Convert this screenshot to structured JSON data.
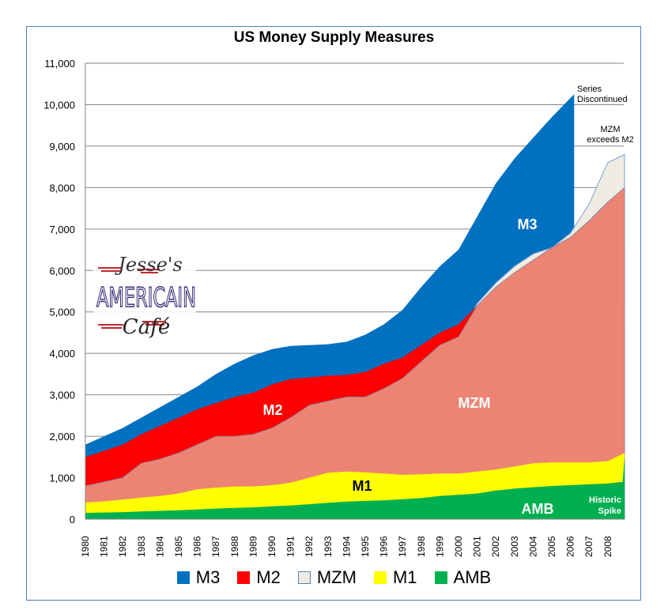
{
  "chart_data": {
    "type": "area",
    "title": "US Money Supply Measures",
    "xlabel": "",
    "ylabel": "",
    "ylim": [
      0,
      11000
    ],
    "yticks": [
      "0",
      "1,000",
      "2,000",
      "3,000",
      "4,000",
      "5,000",
      "6,000",
      "7,000",
      "8,000",
      "9,000",
      "10,000",
      "11,000"
    ],
    "ytick_values": [
      0,
      1000,
      2000,
      3000,
      4000,
      5000,
      6000,
      7000,
      8000,
      9000,
      10000,
      11000
    ],
    "xticks": [
      "1980",
      "1981",
      "1982",
      "1983",
      "1984",
      "1985",
      "1986",
      "1987",
      "1988",
      "1989",
      "1990",
      "1991",
      "1992",
      "1993",
      "1994",
      "1995",
      "1996",
      "1997",
      "1998",
      "1999",
      "2000",
      "2001",
      "2002",
      "2003",
      "2004",
      "2005",
      "2006",
      "2007",
      "2008"
    ],
    "grid": true,
    "legend_position": "bottom",
    "series": [
      {
        "name": "M3",
        "color": "#0070c0",
        "x": [
          1980,
          1981,
          1982,
          1983,
          1984,
          1985,
          1986,
          1987,
          1988,
          1989,
          1990,
          1991,
          1992,
          1993,
          1994,
          1995,
          1996,
          1997,
          1998,
          1999,
          2000,
          2001,
          2002,
          2003,
          2004,
          2005,
          2006.2
        ],
        "values": [
          1800,
          2000,
          2200,
          2450,
          2700,
          2950,
          3200,
          3500,
          3750,
          3950,
          4100,
          4180,
          4200,
          4220,
          4280,
          4450,
          4700,
          5050,
          5600,
          6100,
          6500,
          7300,
          8100,
          8700,
          9200,
          9700,
          10250
        ]
      },
      {
        "name": "M2",
        "color": "#ff0000",
        "x": [
          1980,
          1981,
          1982,
          1983,
          1984,
          1985,
          1986,
          1987,
          1988,
          1989,
          1990,
          1991,
          1992,
          1993,
          1994,
          1995,
          1996,
          1997,
          1998,
          1999,
          2000,
          2001,
          2002,
          2003,
          2004,
          2005,
          2006,
          2007,
          2008,
          2008.9
        ],
        "values": [
          1500,
          1650,
          1800,
          2050,
          2250,
          2450,
          2650,
          2800,
          2950,
          3050,
          3250,
          3380,
          3420,
          3460,
          3480,
          3550,
          3750,
          3900,
          4200,
          4500,
          4700,
          5150,
          5600,
          5950,
          6250,
          6550,
          6800,
          7200,
          7650,
          8000
        ]
      },
      {
        "name": "MZM",
        "color": "#eeece1",
        "x": [
          1980,
          1981,
          1982,
          1983,
          1984,
          1985,
          1986,
          1987,
          1988,
          1989,
          1990,
          1991,
          1992,
          1993,
          1994,
          1995,
          1996,
          1997,
          1998,
          1999,
          2000,
          2001,
          2002,
          2003,
          2004,
          2005,
          2006,
          2007,
          2008,
          2008.9
        ],
        "values": [
          800,
          900,
          1000,
          1350,
          1450,
          1600,
          1800,
          2000,
          2000,
          2050,
          2200,
          2450,
          2750,
          2850,
          2950,
          2950,
          3150,
          3400,
          3800,
          4200,
          4400,
          5200,
          5700,
          6100,
          6400,
          6550,
          6900,
          7600,
          8600,
          8800
        ]
      },
      {
        "name": "M1",
        "color": "#ffff00",
        "x": [
          1980,
          1981,
          1982,
          1983,
          1984,
          1985,
          1986,
          1987,
          1988,
          1989,
          1990,
          1991,
          1992,
          1993,
          1994,
          1995,
          1996,
          1997,
          1998,
          1999,
          2000,
          2001,
          2002,
          2003,
          2004,
          2005,
          2006,
          2007,
          2008,
          2008.9
        ],
        "values": [
          400,
          430,
          470,
          520,
          560,
          620,
          720,
          760,
          790,
          790,
          820,
          880,
          1000,
          1120,
          1150,
          1130,
          1100,
          1070,
          1080,
          1100,
          1100,
          1150,
          1200,
          1270,
          1350,
          1370,
          1370,
          1370,
          1400,
          1600
        ]
      },
      {
        "name": "AMB",
        "color": "#00b050",
        "x": [
          1980,
          1981,
          1982,
          1983,
          1984,
          1985,
          1986,
          1987,
          1988,
          1989,
          1990,
          1991,
          1992,
          1993,
          1994,
          1995,
          1996,
          1997,
          1998,
          1999,
          2000,
          2001,
          2002,
          2003,
          2004,
          2005,
          2006,
          2007,
          2008,
          2008.8,
          2008.9
        ],
        "values": [
          150,
          160,
          170,
          185,
          200,
          215,
          235,
          255,
          270,
          285,
          310,
          330,
          360,
          395,
          425,
          440,
          455,
          480,
          510,
          560,
          590,
          620,
          690,
          740,
          770,
          800,
          820,
          840,
          860,
          900,
          1500
        ]
      }
    ],
    "overlap_color": "#ec8474",
    "area_labels": {
      "m3": "M3",
      "m2": "M2",
      "mzm": "MZM",
      "m1": "M1",
      "amb": "AMB"
    },
    "annotations": {
      "series_discontinued": [
        "Series",
        "Discontinued"
      ],
      "mzm_exceeds": [
        "MZM",
        "exceeds M2"
      ],
      "historic_spike": [
        "Historic",
        "Spike"
      ]
    }
  },
  "logo": {
    "line1": "Jesse's",
    "line2": "AMERICAIN",
    "line3": "Café"
  }
}
